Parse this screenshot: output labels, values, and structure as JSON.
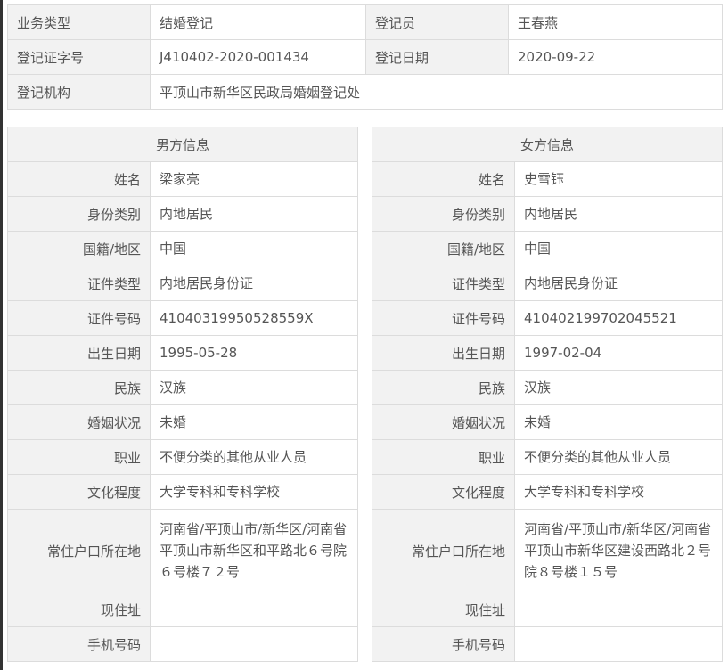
{
  "summary": {
    "business_type_label": "业务类型",
    "business_type": "结婚登记",
    "registrar_label": "登记员",
    "registrar": "王春燕",
    "cert_no_label": "登记证字号",
    "cert_no": "J410402-2020-001434",
    "reg_date_label": "登记日期",
    "reg_date": "2020-09-22",
    "agency_label": "登记机构",
    "agency": "平顶山市新华区民政局婚姻登记处"
  },
  "male": {
    "title": "男方信息",
    "rows": [
      {
        "label": "姓名",
        "value": "梁家亮"
      },
      {
        "label": "身份类别",
        "value": "内地居民"
      },
      {
        "label": "国籍/地区",
        "value": "中国"
      },
      {
        "label": "证件类型",
        "value": "内地居民身份证"
      },
      {
        "label": "证件号码",
        "value": "41040319950528559X"
      },
      {
        "label": "出生日期",
        "value": "1995-05-28"
      },
      {
        "label": "民族",
        "value": "汉族"
      },
      {
        "label": "婚姻状况",
        "value": "未婚"
      },
      {
        "label": "职业",
        "value": "不便分类的其他从业人员"
      },
      {
        "label": "文化程度",
        "value": "大学专科和专科学校"
      },
      {
        "label": "常住户口所在地",
        "value": "河南省/平顶山市/新华区/河南省平顶山市新华区和平路北６号院６号楼７２号"
      },
      {
        "label": "现住址",
        "value": ""
      },
      {
        "label": "手机号码",
        "value": ""
      }
    ]
  },
  "female": {
    "title": "女方信息",
    "rows": [
      {
        "label": "姓名",
        "value": "史雪钰"
      },
      {
        "label": "身份类别",
        "value": "内地居民"
      },
      {
        "label": "国籍/地区",
        "value": "中国"
      },
      {
        "label": "证件类型",
        "value": "内地居民身份证"
      },
      {
        "label": "证件号码",
        "value": "410402199702045521"
      },
      {
        "label": "出生日期",
        "value": "1997-02-04"
      },
      {
        "label": "民族",
        "value": "汉族"
      },
      {
        "label": "婚姻状况",
        "value": "未婚"
      },
      {
        "label": "职业",
        "value": "不便分类的其他从业人员"
      },
      {
        "label": "文化程度",
        "value": "大学专科和专科学校"
      },
      {
        "label": "常住户口所在地",
        "value": "河南省/平顶山市/新华区/河南省平顶山市新华区建设西路北２号院８号楼１５号"
      },
      {
        "label": "现住址",
        "value": ""
      },
      {
        "label": "手机号码",
        "value": ""
      }
    ]
  }
}
